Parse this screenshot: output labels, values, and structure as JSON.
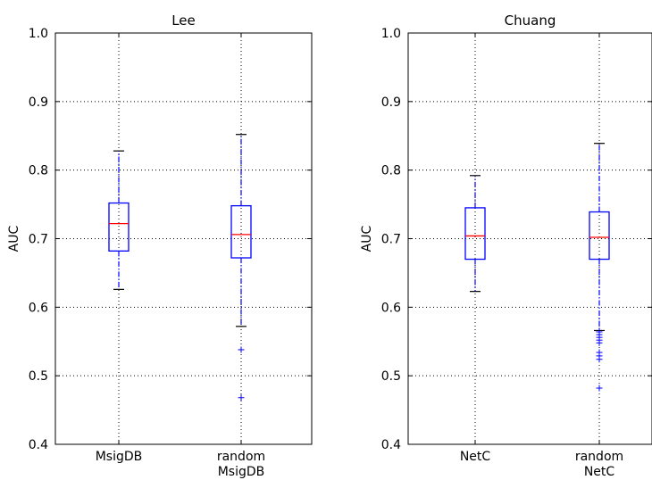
{
  "chart_data": [
    {
      "type": "box",
      "title": "Lee",
      "ylabel": "AUC",
      "ylim": [
        0.4,
        1.0
      ],
      "yticks": [
        "0.4",
        "0.5",
        "0.6",
        "0.7",
        "0.8",
        "0.9",
        "1.0"
      ],
      "grid": true,
      "categories": [
        {
          "lines": [
            "MsigDB"
          ]
        },
        {
          "lines": [
            "random",
            "MsigDB"
          ]
        }
      ],
      "boxes": [
        {
          "whisker_low": 0.626,
          "q1": 0.682,
          "median": 0.722,
          "q3": 0.752,
          "whisker_high": 0.828,
          "outliers": []
        },
        {
          "whisker_low": 0.572,
          "q1": 0.672,
          "median": 0.706,
          "q3": 0.748,
          "whisker_high": 0.852,
          "outliers": [
            0.538,
            0.468
          ]
        }
      ]
    },
    {
      "type": "box",
      "title": "Chuang",
      "ylabel": "AUC",
      "ylim": [
        0.4,
        1.0
      ],
      "yticks": [
        "0.4",
        "0.5",
        "0.6",
        "0.7",
        "0.8",
        "0.9",
        "1.0"
      ],
      "grid": true,
      "categories": [
        {
          "lines": [
            "NetC"
          ]
        },
        {
          "lines": [
            "random",
            "NetC"
          ]
        }
      ],
      "boxes": [
        {
          "whisker_low": 0.623,
          "q1": 0.67,
          "median": 0.704,
          "q3": 0.745,
          "whisker_high": 0.792,
          "outliers": []
        },
        {
          "whisker_low": 0.566,
          "q1": 0.67,
          "median": 0.702,
          "q3": 0.739,
          "whisker_high": 0.839,
          "outliers": [
            0.564,
            0.56,
            0.556,
            0.552,
            0.548,
            0.534,
            0.529,
            0.524,
            0.482
          ]
        }
      ]
    }
  ],
  "colors": {
    "box": "#0000ff",
    "median": "#ff0000",
    "whisker_cap": "#000000",
    "outlier": "#0000ff",
    "grid": "#000000"
  }
}
